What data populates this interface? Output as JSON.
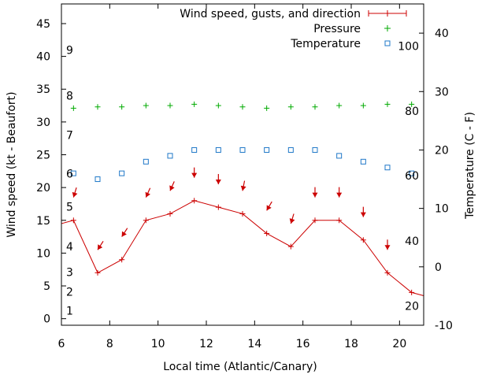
{
  "chart_data": {
    "type": "line",
    "xlabel": "Local time (Atlantic/Canary)",
    "ylabel": "Wind speed (kt - Beaufort)",
    "y2label": "Temperature (C - F)",
    "xlim": [
      6,
      21
    ],
    "ylim": [
      -1,
      48
    ],
    "y2lim": [
      -10,
      45
    ],
    "x_ticks": [
      6,
      8,
      10,
      12,
      14,
      16,
      18,
      20
    ],
    "y_ticks": [
      0,
      5,
      10,
      15,
      20,
      25,
      30,
      35,
      40,
      45
    ],
    "y2_ticks": [
      -10,
      0,
      10,
      20,
      30,
      40
    ],
    "beaufort_labels": [
      {
        "label": "1",
        "y": 1.2
      },
      {
        "label": "2",
        "y": 4.1
      },
      {
        "label": "3",
        "y": 7.1
      },
      {
        "label": "4",
        "y": 11.0
      },
      {
        "label": "5",
        "y": 17.1
      },
      {
        "label": "6",
        "y": 22.1
      },
      {
        "label": "7",
        "y": 28.0
      },
      {
        "label": "8",
        "y": 34.0
      },
      {
        "label": "9",
        "y": 41.0
      }
    ],
    "fahrenheit_labels": [
      {
        "label": "20",
        "temp": -6.7
      },
      {
        "label": "40",
        "temp": 4.4
      },
      {
        "label": "60",
        "temp": 15.6
      },
      {
        "label": "80",
        "temp": 26.7
      },
      {
        "label": "100",
        "temp": 37.8
      }
    ],
    "legend": {
      "position": "top-right",
      "entries": [
        "Wind speed, gusts, and direction",
        "Pressure",
        "Temperature"
      ]
    },
    "colors": {
      "wind": "#cc0000",
      "pressure": "#00aa00",
      "temperature": "#1f78c8"
    },
    "series": [
      {
        "name": "Wind speed, gusts, and direction",
        "x": [
          6.0,
          6.5,
          7.5,
          8.5,
          9.5,
          10.5,
          11.5,
          12.5,
          13.5,
          14.5,
          15.5,
          16.5,
          17.5,
          18.5,
          19.5,
          20.5,
          21.0
        ],
        "y": [
          14.5,
          15,
          7,
          9,
          15,
          16,
          18,
          17,
          16,
          13,
          11,
          15,
          15,
          12,
          7,
          4,
          3.5
        ],
        "markers_x": [
          6.5,
          7.5,
          8.5,
          9.5,
          10.5,
          11.5,
          12.5,
          13.5,
          14.5,
          15.5,
          16.5,
          17.5,
          18.5,
          19.5,
          20.5
        ]
      },
      {
        "name": "Pressure",
        "x": [
          6.5,
          7.5,
          8.5,
          9.5,
          10.5,
          11.5,
          12.5,
          13.5,
          14.5,
          15.5,
          16.5,
          17.5,
          18.5,
          19.5,
          20.5
        ],
        "y": [
          32.1,
          32.3,
          32.3,
          32.5,
          32.5,
          32.7,
          32.5,
          32.3,
          32.1,
          32.3,
          32.3,
          32.5,
          32.5,
          32.7,
          32.7
        ]
      },
      {
        "name": "Temperature",
        "axis": "y2",
        "x": [
          6.5,
          7.5,
          8.5,
          9.5,
          10.5,
          11.5,
          12.5,
          13.5,
          14.5,
          15.5,
          16.5,
          17.5,
          18.5,
          19.5,
          20.5
        ],
        "y": [
          16,
          15,
          16,
          18,
          19,
          20,
          20,
          20,
          20,
          20,
          20,
          19,
          18,
          17,
          16
        ]
      }
    ],
    "direction_arrows": [
      {
        "x": 6.5,
        "y": 18.5,
        "dx": -0.3,
        "dy": -1
      },
      {
        "x": 7.5,
        "y": 10.5,
        "dx": -0.55,
        "dy": -0.85
      },
      {
        "x": 8.5,
        "y": 12.5,
        "dx": -0.55,
        "dy": -0.85
      },
      {
        "x": 9.5,
        "y": 18.5,
        "dx": -0.4,
        "dy": -0.9
      },
      {
        "x": 10.5,
        "y": 19.5,
        "dx": -0.4,
        "dy": -0.9
      },
      {
        "x": 11.5,
        "y": 21.5,
        "dx": 0,
        "dy": -1
      },
      {
        "x": 12.5,
        "y": 20.5,
        "dx": 0,
        "dy": -1
      },
      {
        "x": 13.5,
        "y": 19.5,
        "dx": -0.2,
        "dy": -1
      },
      {
        "x": 14.5,
        "y": 16.5,
        "dx": -0.5,
        "dy": -0.85
      },
      {
        "x": 15.5,
        "y": 14.5,
        "dx": -0.3,
        "dy": -1
      },
      {
        "x": 16.5,
        "y": 18.5,
        "dx": 0,
        "dy": -1
      },
      {
        "x": 17.5,
        "y": 18.5,
        "dx": 0,
        "dy": -1
      },
      {
        "x": 18.5,
        "y": 15.5,
        "dx": 0,
        "dy": -1
      },
      {
        "x": 19.5,
        "y": 10.5,
        "dx": 0,
        "dy": -1
      }
    ]
  }
}
